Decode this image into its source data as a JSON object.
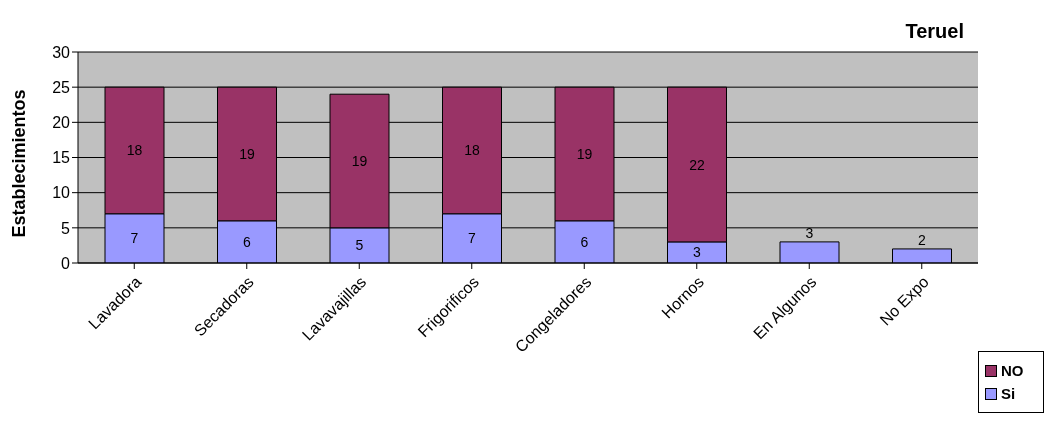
{
  "chart_data": {
    "type": "bar",
    "title": "Teruel",
    "ylabel": "Establecimientos",
    "stacked": true,
    "categories": [
      "Lavadora",
      "Secadoras",
      "Lavavajillas",
      "Frigorificos",
      "Congeladores",
      "Hornos",
      "En Algunos",
      "No Expo"
    ],
    "series": [
      {
        "name": "Si",
        "color": "#9999ff",
        "values": [
          7,
          6,
          5,
          7,
          6,
          3,
          3,
          2
        ]
      },
      {
        "name": "NO",
        "color": "#993366",
        "values": [
          18,
          19,
          19,
          18,
          19,
          22,
          null,
          null
        ]
      }
    ],
    "ylim": [
      0,
      30
    ],
    "yticks": [
      0,
      5,
      10,
      15,
      20,
      25,
      30
    ],
    "grid": "y",
    "legend": "bottom right",
    "data_labels": true
  }
}
